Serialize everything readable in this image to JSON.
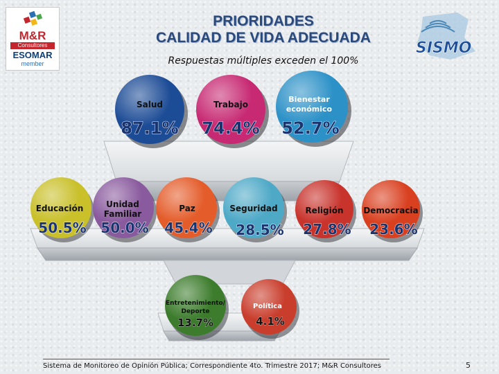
{
  "header": {
    "title_line1": "PRIORIDADES",
    "title_line2": "CALIDAD DE VIDA ADECUADA",
    "subtitle": "Respuestas múltiples exceden el 100%"
  },
  "logos": {
    "mr": {
      "brand": "M&R",
      "sub": "Consultores",
      "esomar": "ESOMAR",
      "member": "member"
    },
    "sismo": {
      "brand": "SISMO"
    }
  },
  "colors": {
    "salud": "#1d4c96",
    "trabajo": "#c72a73",
    "bienestar": "#2c91c7",
    "educacion": "#c9c02a",
    "familiar": "#8a5a9e",
    "paz": "#e45c2a",
    "seguridad": "#4ea9c7",
    "religion": "#c8332c",
    "democracia": "#d94020",
    "entretenimiento": "#3c7c2c",
    "politica": "#c93d2c",
    "pct_text": "#1a3470"
  },
  "chart_data": {
    "type": "bar",
    "title": "PRIORIDADES CALIDAD DE VIDA ADECUADA",
    "note": "Respuestas múltiples exceden el 100%",
    "unit": "%",
    "tiers": [
      {
        "level": 1,
        "categories": [
          "Salud",
          "Trabajo",
          "Bienestar económico"
        ],
        "values": [
          87.1,
          74.4,
          52.7
        ],
        "labels": [
          "87.1%",
          "74.4%",
          "52.7%"
        ]
      },
      {
        "level": 2,
        "categories": [
          "Educación",
          "Unidad Familiar",
          "Paz",
          "Seguridad",
          "Religión",
          "Democracia"
        ],
        "values": [
          50.5,
          50.0,
          45.4,
          28.5,
          27.8,
          23.6
        ],
        "labels": [
          "50.5%",
          "50.0%",
          "45.4%",
          "28.5%",
          "27.8%",
          "23.6%"
        ]
      },
      {
        "level": 3,
        "categories": [
          "Entretenimiento/ Deporte",
          "Política"
        ],
        "values": [
          13.7,
          4.1
        ],
        "labels": [
          "13.7%",
          "4.1%"
        ]
      }
    ],
    "items": {
      "salud": {
        "line1": "Salud",
        "line2": "",
        "value": 87.1,
        "label": "87.1%"
      },
      "trabajo": {
        "line1": "Trabajo",
        "line2": "",
        "value": 74.4,
        "label": "74.4%"
      },
      "bienestar": {
        "line1": "Bienestar",
        "line2": "económico",
        "value": 52.7,
        "label": "52.7%"
      },
      "educacion": {
        "line1": "Educación",
        "line2": "",
        "value": 50.5,
        "label": "50.5%"
      },
      "familiar": {
        "line1": "Unidad",
        "line2": "Familiar",
        "value": 50.0,
        "label": "50.0%"
      },
      "paz": {
        "line1": "Paz",
        "line2": "",
        "value": 45.4,
        "label": "45.4%"
      },
      "seguridad": {
        "line1": "Seguridad",
        "line2": "",
        "value": 28.5,
        "label": "28.5%"
      },
      "religion": {
        "line1": "Religión",
        "line2": "",
        "value": 27.8,
        "label": "27.8%"
      },
      "democracia": {
        "line1": "Democracia",
        "line2": "",
        "value": 23.6,
        "label": "23.6%"
      },
      "entretenimiento": {
        "line1": "Entretenimiento/",
        "line2": "Deporte",
        "value": 13.7,
        "label": "13.7%"
      },
      "politica": {
        "line1": "Política",
        "line2": "",
        "value": 4.1,
        "label": "4.1%"
      }
    }
  },
  "footer": {
    "source": "Sistema de Monitoreo de Opinión Pública; Correspondiente 4to. Trimestre 2017; M&R Consultores",
    "page": "5"
  }
}
